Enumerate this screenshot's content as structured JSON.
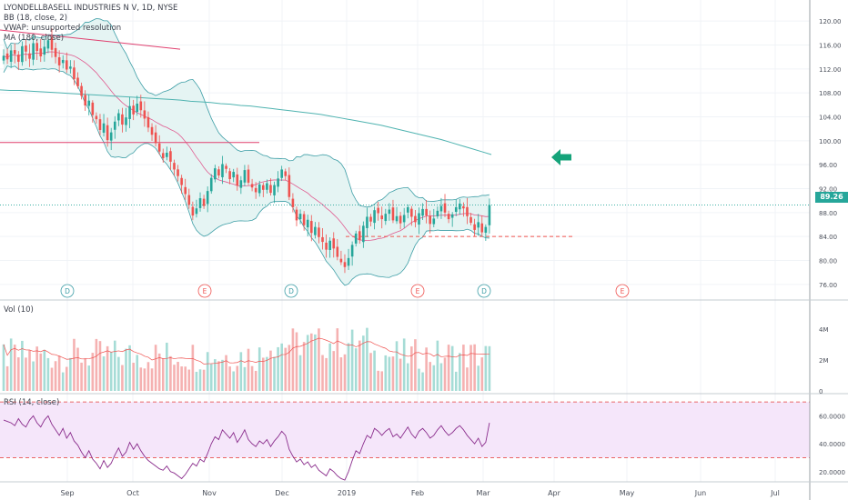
{
  "header": {
    "symbol_line": "LYONDELLBASELL INDUSTRIES N V, 1D, NYSE",
    "bb_label": "BB (18, close, 2)",
    "vwap_label": "VWAP: unsupported resolution",
    "ma_label": "MA (180, close)"
  },
  "colors": {
    "up": "#26a69a",
    "down": "#ef5350",
    "bb_line": "#3d9ea6",
    "bb_fill": "#e5f4f3",
    "ma180": "#4fb3b0",
    "ma_short": "#e05a8f",
    "resistance": "#e0406f",
    "rsi_line": "#8a2d8c",
    "rsi_fill": "#f5e6fa",
    "rsi_band": "#e53935",
    "arrow": "#15a37a"
  },
  "chart_data": {
    "type": "candlestick",
    "price_axis_ticks": [
      "120.00",
      "116.00",
      "112.00",
      "108.00",
      "104.00",
      "100.00",
      "96.00",
      "92.00",
      "88.00",
      "84.00",
      "80.00",
      "76.00"
    ],
    "price_ylim": [
      74,
      122
    ],
    "last_price": "89.26",
    "x_ticks": [
      "Sep",
      "Oct",
      "Nov",
      "Dec",
      "2019",
      "Feb",
      "Mar",
      "Apr",
      "May",
      "Jun",
      "Jul"
    ],
    "events": [
      "D",
      "E",
      "D",
      "E",
      "D",
      "E"
    ],
    "ohlc_close": [
      114.2,
      113.6,
      115.1,
      114.5,
      113.2,
      115.8,
      114.9,
      113.7,
      116.3,
      115.0,
      114.1,
      115.7,
      116.8,
      115.2,
      114.0,
      112.6,
      113.5,
      111.9,
      112.4,
      110.3,
      109.1,
      107.5,
      105.9,
      106.7,
      104.3,
      103.6,
      101.8,
      102.9,
      100.1,
      101.4,
      103.2,
      104.6,
      102.7,
      103.9,
      105.8,
      104.4,
      106.2,
      105.1,
      103.7,
      102.2,
      101.0,
      99.6,
      98.2,
      97.1,
      98.0,
      96.5,
      95.2,
      94.1,
      92.6,
      91.1,
      89.3,
      87.5,
      88.7,
      90.4,
      89.1,
      91.6,
      93.8,
      95.4,
      94.2,
      96.1,
      95.3,
      93.6,
      94.8,
      92.5,
      93.4,
      95.1,
      93.0,
      92.2,
      91.4,
      92.7,
      91.8,
      92.9,
      91.3,
      92.6,
      93.7,
      95.2,
      94.1,
      90.6,
      88.9,
      86.7,
      87.8,
      85.9,
      86.8,
      84.6,
      85.6,
      83.9,
      83.1,
      81.8,
      83.3,
      82.0,
      80.6,
      79.7,
      78.9,
      80.4,
      82.6,
      84.5,
      83.4,
      85.8,
      87.3,
      86.5,
      88.4,
      87.9,
      86.9,
      87.8,
      88.5,
      86.7,
      87.4,
      86.2,
      87.6,
      88.9,
      87.3,
      86.4,
      87.9,
      88.6,
      87.5,
      86.1,
      87.0,
      88.3,
      89.1,
      88.0,
      86.9,
      87.7,
      88.9,
      89.5,
      88.7,
      87.4,
      86.3,
      85.1,
      86.4,
      84.7,
      85.6,
      89.26
    ],
    "ma180": [
      108.5,
      108.4,
      108.4,
      108.3,
      108.2,
      108.1,
      108.0,
      107.9,
      107.8,
      107.7,
      107.6,
      107.5,
      107.4,
      107.3,
      107.2,
      107.1,
      107.0,
      106.9,
      106.8,
      106.6,
      106.5,
      106.4,
      106.2,
      106.1,
      105.9,
      105.8,
      105.6,
      105.4,
      105.2,
      105.0,
      104.8,
      104.6,
      104.4,
      104.1,
      103.8,
      103.5,
      103.2,
      102.9,
      102.6,
      102.2,
      101.8,
      101.4,
      101.0,
      100.6,
      100.2,
      99.7,
      99.2,
      98.7,
      98.2,
      97.7
    ],
    "volume_ylim": [
      0,
      5
    ],
    "volume_ticks": [
      "4M",
      "2M",
      "0"
    ],
    "volume_label": "Vol (10)",
    "rsi_label": "RSI (14, close)",
    "rsi_ticks": [
      "60.0000",
      "40.0000",
      "20.0000"
    ],
    "rsi_ylim": [
      14,
      74
    ],
    "rsi_band": [
      30,
      70
    ],
    "rsi_values": [
      57,
      56,
      55,
      53,
      58,
      54,
      52,
      57,
      60,
      55,
      52,
      57,
      60,
      54,
      50,
      46,
      51,
      44,
      48,
      42,
      39,
      34,
      30,
      35,
      29,
      26,
      22,
      28,
      23,
      26,
      32,
      37,
      31,
      34,
      41,
      36,
      40,
      35,
      31,
      28,
      26,
      24,
      22,
      21,
      24,
      20,
      19,
      17,
      15,
      18,
      22,
      26,
      24,
      29,
      27,
      33,
      40,
      45,
      43,
      50,
      47,
      44,
      48,
      41,
      45,
      50,
      43,
      40,
      38,
      42,
      40,
      43,
      38,
      42,
      45,
      49,
      46,
      36,
      31,
      27,
      29,
      25,
      27,
      23,
      25,
      21,
      19,
      17,
      22,
      20,
      17,
      15,
      14,
      20,
      28,
      35,
      33,
      40,
      46,
      44,
      51,
      49,
      46,
      49,
      51,
      45,
      47,
      44,
      48,
      52,
      47,
      44,
      49,
      51,
      48,
      44,
      46,
      50,
      53,
      49,
      46,
      48,
      51,
      53,
      50,
      46,
      43,
      40,
      44,
      38,
      41,
      55
    ]
  }
}
